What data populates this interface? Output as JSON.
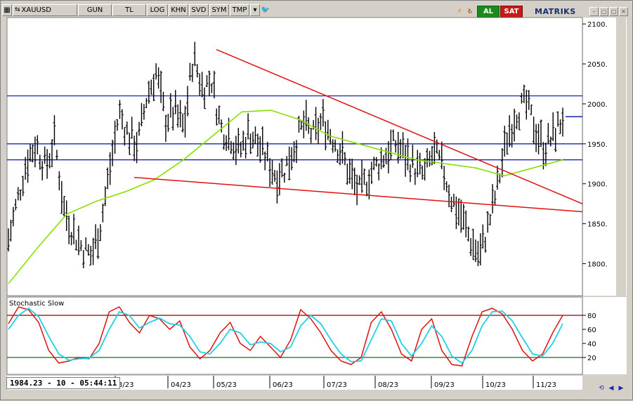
{
  "toolbar": {
    "symbol": "XAUUSD",
    "period": "GUN",
    "currency": "TL",
    "log": "LOG",
    "khn": "KHN",
    "svd": "SVD",
    "sym": "SYM",
    "tmp": "TMP",
    "buy": "AL",
    "sell": "SAT",
    "brand": "MATRIKS"
  },
  "status": {
    "readout": "1984.23 - 10 - 05:44:11"
  },
  "indicator": {
    "label": "Stochastic Slow"
  },
  "colors": {
    "bars": "#000000",
    "ma": "#88e000",
    "trendline": "#e01010",
    "hline": "#1a20a8",
    "stoch_k": "#e01010",
    "stoch_d": "#20d0e8",
    "upper_band": "#8b0000",
    "lower_band": "#107010"
  },
  "chart_data": [
    {
      "type": "bar",
      "title": "XAUUSD",
      "x_ticks": [
        "3/23",
        "04/23",
        "05/23",
        "06/23",
        "07/23",
        "08/23",
        "09/23",
        "10/23",
        "11/23"
      ],
      "y_ticks": [
        "2100.",
        "2050.",
        "2000.",
        "1950.",
        "1900.",
        "1850.",
        "1800."
      ],
      "ylim": [
        1760,
        2108
      ],
      "close_path": [
        1830,
        1880,
        1930,
        1950,
        1920,
        1955,
        1870,
        1840,
        1820,
        1810,
        1850,
        1920,
        1990,
        1960,
        1950,
        2010,
        2040,
        1980,
        1990,
        1970,
        2060,
        2020,
        2030,
        1970,
        1960,
        1940,
        1965,
        1950,
        1930,
        1910,
        1920,
        1950,
        1975,
        1960,
        1980,
        1960,
        1940,
        1910,
        1890,
        1910,
        1925,
        1940,
        1950,
        1935,
        1920,
        1910,
        1940,
        1920,
        1880,
        1860,
        1830,
        1810,
        1850,
        1900,
        1960,
        1990,
        2000,
        1970,
        1945,
        1960,
        1984
      ],
      "moving_average": [
        1775,
        1820,
        1862,
        1878,
        1890,
        1905,
        1930,
        1960,
        1990,
        1992,
        1980,
        1960,
        1950,
        1940,
        1930,
        1925,
        1920,
        1910,
        1920,
        1930
      ],
      "horizontal_levels": [
        2010,
        1950,
        1930
      ],
      "trendlines": [
        {
          "from": [
            1,
            2068
          ],
          "to": [
            2,
            1875
          ]
        },
        {
          "from": [
            0,
            1908
          ],
          "to": [
            2,
            1865
          ]
        }
      ],
      "last_price_marker": 1984
    },
    {
      "type": "line",
      "title": "Stochastic Slow",
      "y_ticks": [
        "80",
        "60",
        "40",
        "20"
      ],
      "ylim": [
        0,
        100
      ],
      "upper_band": 80,
      "lower_band": 20,
      "series": [
        {
          "values": [
            68,
            92,
            88,
            70,
            30,
            12,
            15,
            20,
            18,
            40,
            85,
            92,
            70,
            55,
            80,
            75,
            60,
            72,
            35,
            18,
            30,
            55,
            70,
            40,
            30,
            50,
            35,
            20,
            45,
            88,
            75,
            55,
            30,
            15,
            10,
            20,
            70,
            85,
            60,
            25,
            15,
            60,
            75,
            30,
            10,
            8,
            50,
            85,
            90,
            82,
            60,
            30,
            15,
            25,
            55,
            80
          ]
        },
        {
          "values": [
            60,
            80,
            90,
            78,
            50,
            25,
            16,
            18,
            19,
            30,
            60,
            85,
            80,
            62,
            70,
            76,
            68,
            66,
            50,
            28,
            25,
            40,
            60,
            55,
            38,
            42,
            40,
            28,
            35,
            65,
            80,
            68,
            45,
            25,
            14,
            15,
            45,
            75,
            72,
            40,
            22,
            40,
            65,
            50,
            22,
            12,
            30,
            65,
            85,
            86,
            72,
            48,
            25,
            22,
            40,
            68
          ]
        }
      ]
    }
  ]
}
